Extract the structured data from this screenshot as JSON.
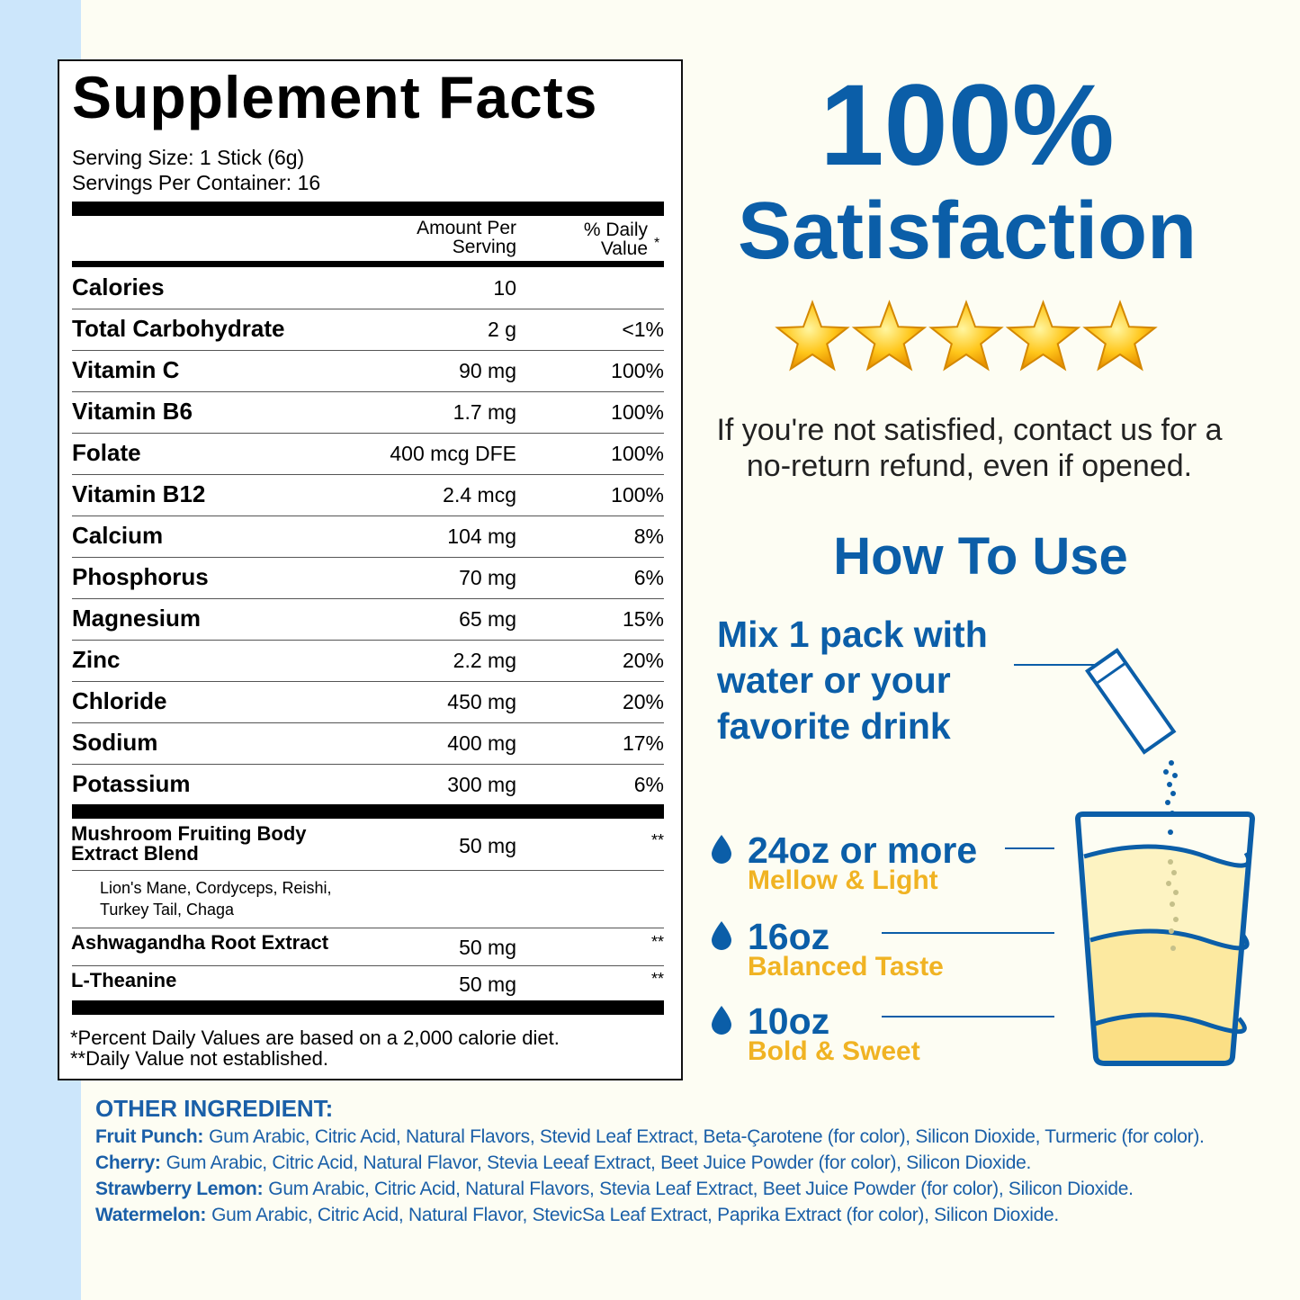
{
  "facts": {
    "title": "Supplement Facts",
    "serving_size": "Serving Size: 1 Stick (6g)",
    "servings_per_container": "Servings Per Container: 16",
    "header": {
      "amount": "Amount Per Serving",
      "daily_value": "% Daily Value",
      "daily_value_mark": "*"
    },
    "rows": [
      {
        "name": "Calories",
        "amount": "10"
      },
      {
        "name": "Total Carbohydrate",
        "amount": "2 g",
        "dv": "<1%"
      },
      {
        "name": "Vitamin C",
        "amount": "90 mg",
        "dv": "100%"
      },
      {
        "name": "Vitamin B6",
        "amount": "1.7 mg",
        "dv": "100%"
      },
      {
        "name": "Folate",
        "amount": "400 mcg DFE",
        "dv": "100%"
      },
      {
        "name": "Vitamin B12",
        "amount": "2.4 mcg",
        "dv": "100%"
      },
      {
        "name": "Calcium",
        "amount": "104 mg",
        "dv": "8%"
      },
      {
        "name": "Phosphorus",
        "amount": "70 mg",
        "dv": "6%"
      },
      {
        "name": "Magnesium",
        "amount": "65 mg",
        "dv": "15%"
      },
      {
        "name": "Zinc",
        "amount": "2.2 mg",
        "dv": "20%"
      },
      {
        "name": "Chloride",
        "amount": "450 mg",
        "dv": "20%"
      },
      {
        "name": "Sodium",
        "amount": "400 mg",
        "dv": "17%"
      },
      {
        "name": "Potassium",
        "amount": "300 mg",
        "dv": "6%"
      }
    ],
    "blends": [
      {
        "name": "Mushroom Fruiting Body Extract Blend",
        "amount": "50 mg",
        "dv": "**",
        "detail": "Lion's Mane, Cordyceps, Reishi, Turkey Tail, Chaga"
      },
      {
        "name": "Ashwagandha Root Extract",
        "amount": "50 mg",
        "dv": "**"
      },
      {
        "name": "L-Theanine",
        "amount": "50 mg",
        "dv": "**"
      }
    ],
    "footnotes": [
      "*Percent Daily Values are based on a 2,000 calorie diet.",
      "**Daily Value not established."
    ]
  },
  "satisfaction": {
    "headline_1": "100%",
    "headline_2": "Satisfaction",
    "text": "If you're not satisfied, contact us for a no-return refund, even if opened."
  },
  "how_to_use": {
    "title": "How To Use",
    "instruction": "Mix 1 pack with water or your favorite drink",
    "levels": [
      {
        "amount": "24oz or more",
        "taste": "Mellow & Light"
      },
      {
        "amount": "16oz",
        "taste": "Balanced Taste"
      },
      {
        "amount": "10oz",
        "taste": "Bold & Sweet"
      }
    ]
  },
  "other_ingredients": {
    "title": "OTHER INGREDIENT:",
    "items": [
      {
        "flavor": "Fruit Punch:",
        "ingredients": "Gum Arabic, Citric Acid, Natural Flavors, Stevid Leaf Extract, Beta-Çarotene (for color), Silicon Dioxide, Turmeric (for color)."
      },
      {
        "flavor": "Cherry:",
        "ingredients": "Gum Arabic, Citric Acid, Natural Flavor, Stevia Leeaf Extract, Beet Juice Powder (for color), Silicon Dioxide."
      },
      {
        "flavor": "Strawberry Lemon:",
        "ingredients": "Gum Arabic, Citric Acid, Natural Flavors, Stevia Leaf Extract, Beet Juice Powder (for color), Silicon Dioxide."
      },
      {
        "flavor": "Watermelon:",
        "ingredients": "Gum Arabic, Citric Acid, Natural Flavor, StevicSa Leaf Extract, Paprika Extract (for color), Silicon Dioxide."
      }
    ]
  }
}
